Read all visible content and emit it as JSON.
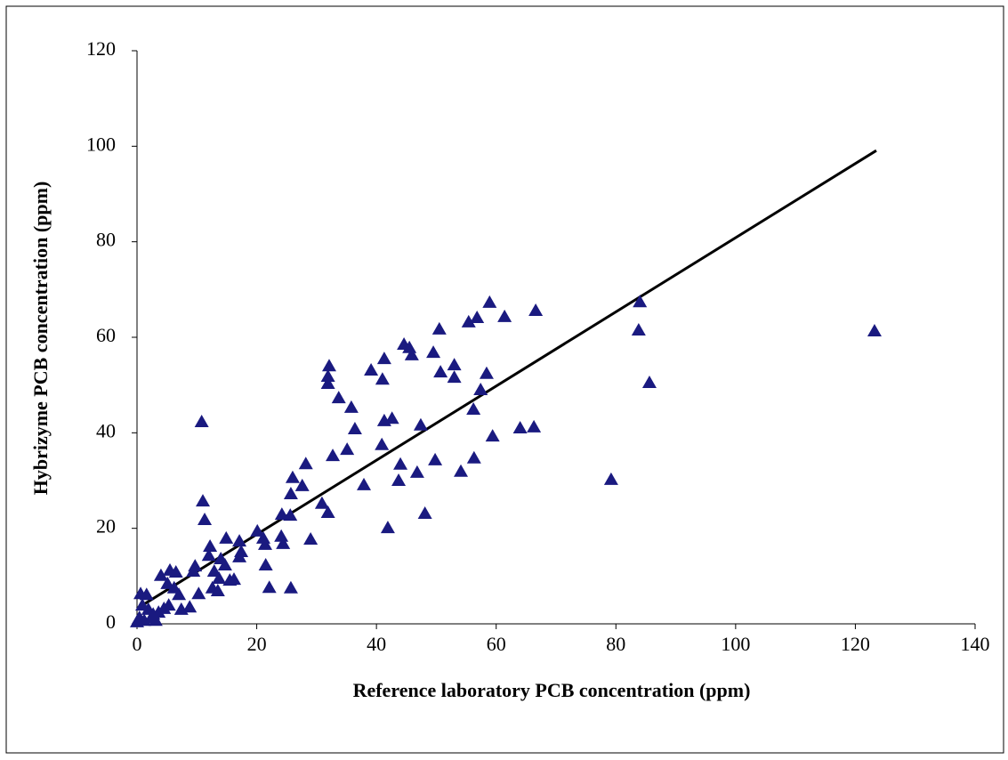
{
  "chart_data": {
    "type": "scatter",
    "x_label": "Reference laboratory PCB concentration (ppm)",
    "y_label": "Hybrizyme PCB concentration (ppm)",
    "color": "#1a1a80",
    "x": [
      123.2,
      10.8,
      11.0,
      11.3,
      32.1,
      31.9,
      31.9,
      33.7,
      35.8,
      36.4,
      35.1,
      32.7,
      39.1,
      41.3,
      41.0,
      44.6,
      45.5,
      45.9,
      50.5,
      49.5,
      50.7,
      53.0,
      53.0,
      55.4,
      56.8,
      58.9,
      61.4,
      66.6,
      58.4,
      57.4,
      56.2,
      59.4,
      64.0,
      66.3,
      56.3,
      54.1,
      49.8,
      47.4,
      42.6,
      41.3,
      40.9,
      44.0,
      43.7,
      46.8,
      48.1,
      41.9,
      37.9,
      79.2,
      84.0,
      83.8,
      85.6,
      28.2,
      27.6,
      26.0,
      25.7,
      24.2,
      25.6,
      24.1,
      24.4,
      29.0,
      30.9,
      31.9,
      20.1,
      21.1,
      21.4,
      21.5,
      22.1,
      25.7,
      14.9,
      17.1,
      17.4,
      17.1,
      12.2,
      12.0,
      14.0,
      14.7,
      12.9,
      13.7,
      15.5,
      16.2,
      12.6,
      13.5,
      10.3,
      9.4,
      9.7,
      4.0,
      5.5,
      6.5,
      5.1,
      7.0,
      6.2,
      8.8,
      7.4,
      4.5,
      3.6,
      5.3,
      0.6,
      1.6,
      0.9,
      1.9,
      2.7,
      0.4,
      1.2,
      0,
      2.4,
      3.1
    ],
    "values": [
      61.3,
      42.3,
      25.7,
      21.8,
      54.0,
      51.8,
      50.3,
      47.3,
      45.3,
      40.8,
      36.5,
      35.2,
      53.1,
      55.5,
      51.2,
      58.5,
      57.8,
      56.3,
      61.7,
      56.8,
      52.7,
      54.2,
      51.6,
      63.2,
      64.1,
      67.3,
      64.3,
      65.6,
      52.4,
      49.0,
      44.9,
      39.3,
      41.0,
      41.2,
      34.7,
      31.9,
      34.3,
      41.6,
      43.0,
      42.5,
      37.5,
      33.4,
      30.0,
      31.7,
      23.1,
      20.1,
      29.1,
      30.2,
      67.4,
      61.5,
      50.5,
      33.5,
      28.9,
      30.6,
      27.2,
      22.9,
      22.7,
      18.3,
      16.8,
      17.7,
      25.2,
      23.3,
      19.4,
      17.9,
      16.6,
      12.3,
      7.6,
      7.5,
      17.9,
      17.3,
      15.1,
      14.0,
      16.2,
      14.3,
      13.6,
      12.3,
      11.0,
      9.5,
      9.1,
      9.3,
      7.5,
      6.9,
      6.3,
      11.0,
      12.1,
      10.1,
      11.2,
      10.8,
      8.4,
      6.1,
      7.5,
      3.5,
      3.0,
      3.2,
      2.4,
      3.9,
      6.3,
      6.1,
      3.9,
      3.0,
      2.0,
      1.3,
      0.7,
      0.4,
      1.3,
      0.7
    ],
    "trendline": {
      "color": "#000000",
      "x": [
        0,
        123.5
      ],
      "values": [
        3.2,
        99.1
      ]
    },
    "xlim": [
      0,
      140
    ],
    "xticks": [
      0,
      20,
      40,
      60,
      80,
      100,
      120,
      140
    ],
    "ylim": [
      0,
      120
    ],
    "yticks": [
      0,
      20,
      40,
      60,
      80,
      100,
      120
    ]
  }
}
